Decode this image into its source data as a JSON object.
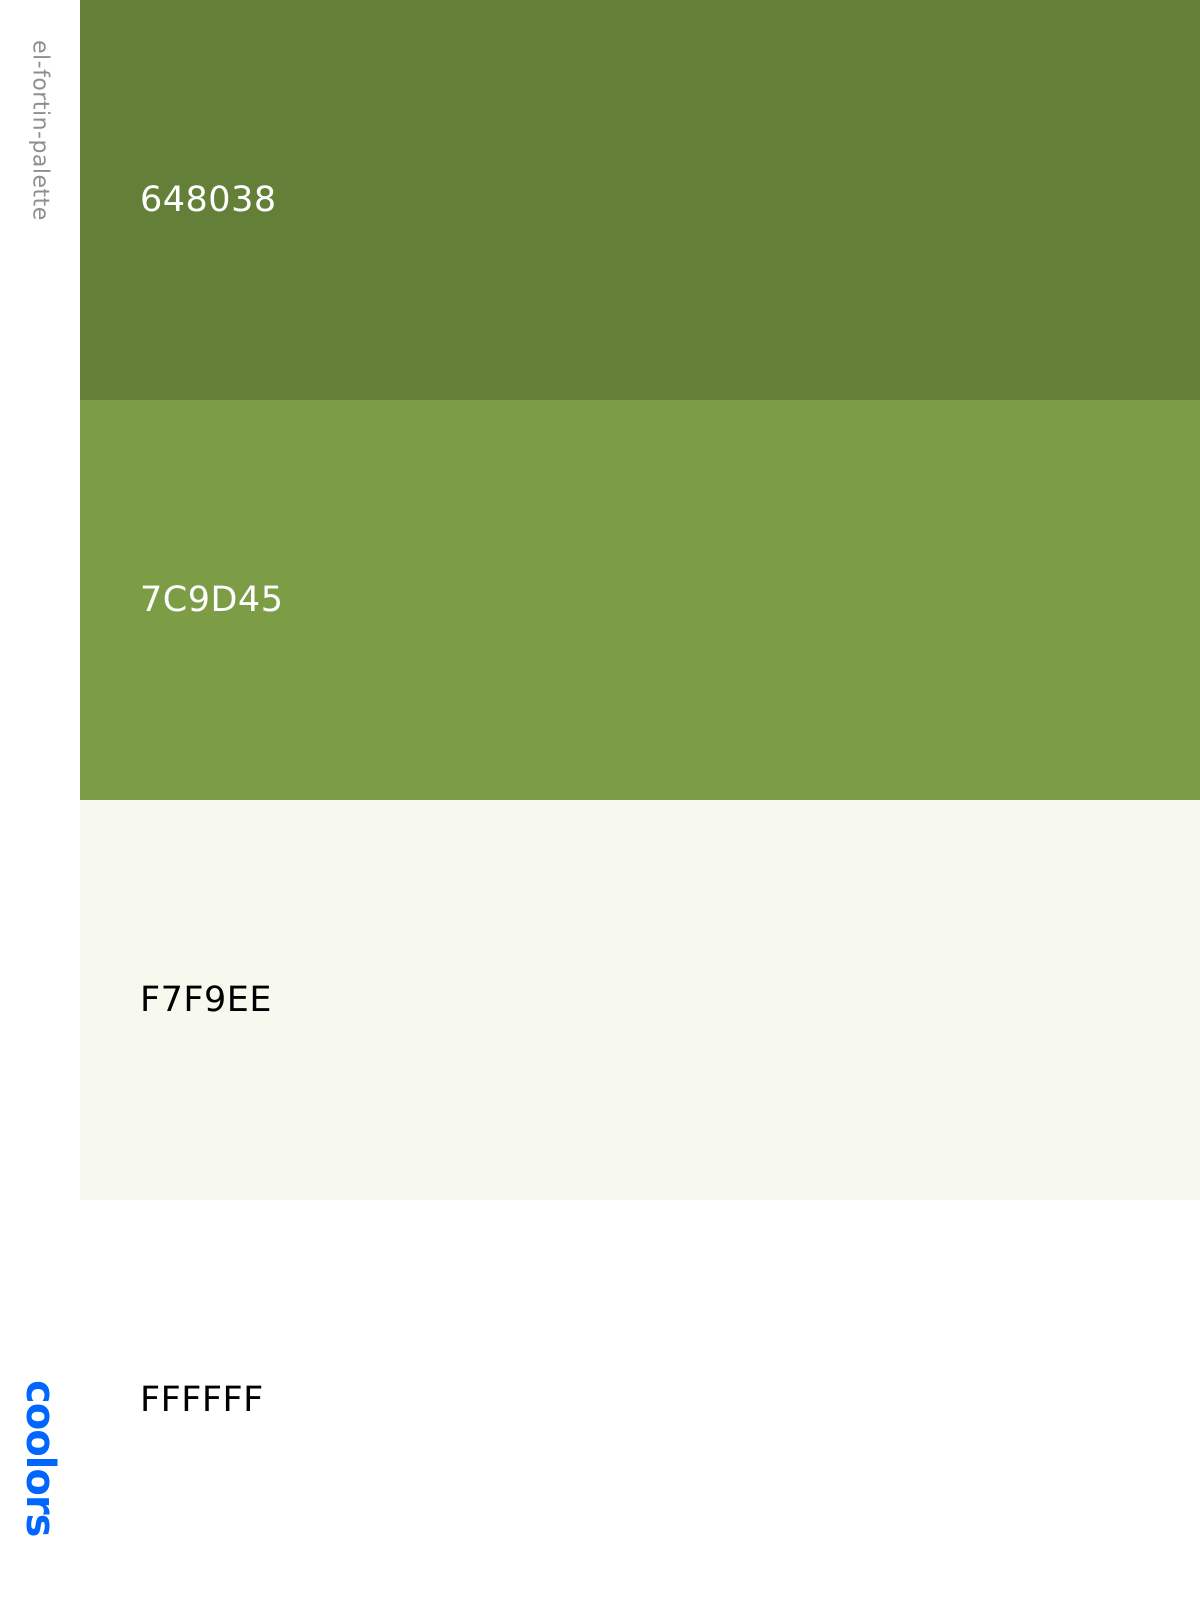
{
  "palette": {
    "name": "el-fortin-palette",
    "brand": "coolors",
    "brand_color": "#0066ff",
    "swatches": [
      {
        "hex": "648038",
        "color": "#648038",
        "text_color": "#ffffff"
      },
      {
        "hex": "7C9D45",
        "color": "#7C9D45",
        "text_color": "#ffffff"
      },
      {
        "hex": "F7F9EE",
        "color": "#F7F9EE",
        "text_color": "#000000"
      },
      {
        "hex": "FFFFFF",
        "color": "#FFFFFF",
        "text_color": "#000000"
      }
    ]
  }
}
